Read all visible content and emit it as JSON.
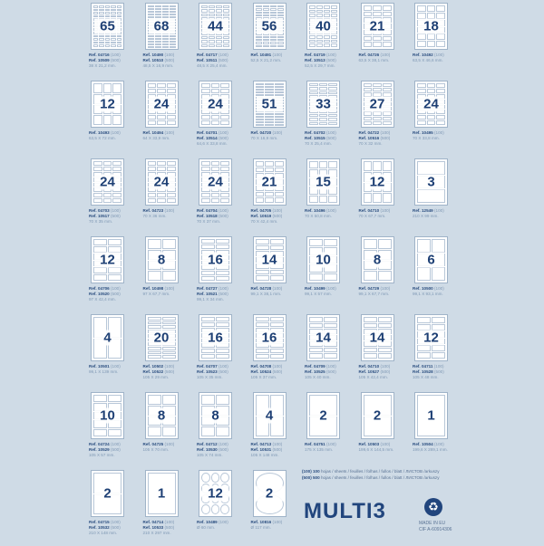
{
  "products": [
    [
      {
        "n": "65",
        "refs": [
          "04716 (100)",
          "10509 (500)"
        ],
        "size": "38 X 21,2 mm.",
        "grid": [
          5,
          13
        ]
      },
      {
        "n": "68",
        "refs": [
          "10490 (100)",
          "10510 (500)"
        ],
        "size": "48,5 X 16,9 mm.",
        "grid": [
          4,
          17
        ]
      },
      {
        "n": "44",
        "refs": [
          "04717 (100)",
          "10511 (500)"
        ],
        "size": "48,5 X 25,4 mm.",
        "grid": [
          4,
          11
        ]
      },
      {
        "n": "56",
        "refs": [
          "10491 (100)"
        ],
        "size": "52,5 X 21,2 mm.",
        "grid": [
          4,
          14
        ]
      },
      {
        "n": "40",
        "refs": [
          "04719 (100)",
          "10513 (500)"
        ],
        "size": "52,5 X 29,7 mm.",
        "grid": [
          4,
          10
        ]
      },
      {
        "n": "21",
        "refs": [
          "04726 (100)"
        ],
        "size": "63,5 X 38,1 mm.",
        "grid": [
          3,
          7
        ]
      },
      {
        "n": "18",
        "refs": [
          "10492 (100)"
        ],
        "size": "63,5 X 46,6 mm.",
        "grid": [
          3,
          6
        ]
      }
    ],
    [
      {
        "n": "12",
        "refs": [
          "10493 (100)"
        ],
        "size": "63,5 X 72 mm.",
        "grid": [
          3,
          4
        ]
      },
      {
        "n": "24",
        "refs": [
          "10494 (100)"
        ],
        "size": "64 X 33,9 mm.",
        "grid": [
          3,
          8
        ]
      },
      {
        "n": "24",
        "refs": [
          "04701 (100)",
          "10514 (500)"
        ],
        "size": "64,6 X 33,8 mm.",
        "grid": [
          3,
          8
        ]
      },
      {
        "n": "51",
        "refs": [
          "04720 (100)"
        ],
        "size": "70 X 16,9 mm.",
        "grid": [
          3,
          17
        ]
      },
      {
        "n": "33",
        "refs": [
          "04702 (100)",
          "10515 (500)"
        ],
        "size": "70 X 25,4 mm.",
        "grid": [
          3,
          11
        ]
      },
      {
        "n": "27",
        "refs": [
          "04722 (100)",
          "10516 (500)"
        ],
        "size": "70 X 32 mm.",
        "grid": [
          3,
          9
        ]
      },
      {
        "n": "24",
        "refs": [
          "10495 (100)"
        ],
        "size": "70 X 33,8 mm.",
        "grid": [
          3,
          8
        ]
      }
    ],
    [
      {
        "n": "24",
        "refs": [
          "04703 (100)",
          "10517 (500)"
        ],
        "size": "70 X 35 mm.",
        "grid": [
          3,
          8
        ]
      },
      {
        "n": "24",
        "refs": [
          "04723 (100)"
        ],
        "size": "70 X 36 mm.",
        "grid": [
          3,
          8
        ]
      },
      {
        "n": "24",
        "refs": [
          "04704 (100)",
          "10518 (500)"
        ],
        "size": "70 X 37 mm.",
        "grid": [
          3,
          8
        ]
      },
      {
        "n": "21",
        "refs": [
          "04705 (100)",
          "10519 (500)"
        ],
        "size": "70 X 42,4 mm.",
        "grid": [
          3,
          7
        ]
      },
      {
        "n": "15",
        "refs": [
          "10496 (100)"
        ],
        "size": "70 X 50,8 mm.",
        "grid": [
          3,
          5
        ]
      },
      {
        "n": "12",
        "refs": [
          "04710 (100)"
        ],
        "size": "70 X 67,7 mm.",
        "grid": [
          3,
          4
        ]
      },
      {
        "n": "3",
        "refs": [
          "12549 (100)"
        ],
        "size": "210 X 99 mm.",
        "grid": [
          1,
          3
        ]
      }
    ],
    [
      {
        "n": "12",
        "refs": [
          "04706 (100)",
          "10520 (500)"
        ],
        "size": "97 X 42,4 mm.",
        "grid": [
          2,
          6
        ]
      },
      {
        "n": "8",
        "refs": [
          "10498 (100)"
        ],
        "size": "97 X 67,7 mm.",
        "grid": [
          2,
          4
        ]
      },
      {
        "n": "16",
        "refs": [
          "04727 (100)",
          "10521 (500)"
        ],
        "size": "99,1 X 34 mm.",
        "grid": [
          2,
          8
        ]
      },
      {
        "n": "14",
        "refs": [
          "04728 (100)"
        ],
        "size": "99,1 X 38,1 mm.",
        "grid": [
          2,
          7
        ]
      },
      {
        "n": "10",
        "refs": [
          "10499 (100)"
        ],
        "size": "99,1 X 57 mm.",
        "grid": [
          2,
          5
        ]
      },
      {
        "n": "8",
        "refs": [
          "04729 (100)"
        ],
        "size": "99,1 X 67,7 mm.",
        "grid": [
          2,
          4
        ]
      },
      {
        "n": "6",
        "refs": [
          "10500 (100)"
        ],
        "size": "99,1 X 93,1 mm.",
        "grid": [
          2,
          3
        ]
      }
    ],
    [
      {
        "n": "4",
        "refs": [
          "10501 (100)"
        ],
        "size": "99,1 X 139 mm.",
        "grid": [
          2,
          2
        ]
      },
      {
        "n": "20",
        "refs": [
          "10502 (100)",
          "10522 (500)"
        ],
        "size": "105 X 29 mm.",
        "grid": [
          2,
          10
        ]
      },
      {
        "n": "16",
        "refs": [
          "04707 (100)",
          "10523 (500)"
        ],
        "size": "105 X 35 mm.",
        "grid": [
          2,
          8
        ]
      },
      {
        "n": "16",
        "refs": [
          "04708 (100)",
          "10524 (500)"
        ],
        "size": "105 X 37 mm.",
        "grid": [
          2,
          8
        ]
      },
      {
        "n": "14",
        "refs": [
          "04709 (100)",
          "10525 (500)"
        ],
        "size": "105 X 40 mm.",
        "grid": [
          2,
          7
        ]
      },
      {
        "n": "14",
        "refs": [
          "04710 (100)",
          "10527 (500)"
        ],
        "size": "105 X 42,4 mm.",
        "grid": [
          2,
          7
        ]
      },
      {
        "n": "12",
        "refs": [
          "04711 (100)",
          "10528 (500)"
        ],
        "size": "105 X 48 mm.",
        "grid": [
          2,
          6
        ]
      }
    ],
    [
      {
        "n": "10",
        "refs": [
          "04724 (100)",
          "10529 (500)"
        ],
        "size": "105 X 57 mm.",
        "grid": [
          2,
          5
        ]
      },
      {
        "n": "8",
        "refs": [
          "04725 (100)"
        ],
        "size": "105 X 70 mm.",
        "grid": [
          2,
          4
        ]
      },
      {
        "n": "8",
        "refs": [
          "04712 (100)",
          "10530 (500)"
        ],
        "size": "105 X 74 mm.",
        "grid": [
          2,
          4
        ]
      },
      {
        "n": "4",
        "refs": [
          "04713 (100)",
          "10531 (500)"
        ],
        "size": "105 X 148 mm.",
        "grid": [
          2,
          2
        ]
      },
      {
        "n": "2",
        "refs": [
          "04751 (100)"
        ],
        "size": "175 X 135 mm.",
        "grid": [
          1,
          2
        ]
      },
      {
        "n": "2",
        "refs": [
          "10503 (100)"
        ],
        "size": "199,6 X 144,5 mm.",
        "grid": [
          1,
          2
        ]
      },
      {
        "n": "1",
        "refs": [
          "10504 (100)"
        ],
        "size": "199,6 X 289,1 mm.",
        "grid": [
          1,
          1
        ]
      }
    ],
    [
      {
        "n": "2",
        "refs": [
          "04715 (100)",
          "10532 (500)"
        ],
        "size": "210 X 148 mm.",
        "grid": [
          1,
          2
        ]
      },
      {
        "n": "1",
        "refs": [
          "04714 (100)",
          "10533 (500)"
        ],
        "size": "210 X 297 mm.",
        "grid": [
          1,
          1
        ]
      },
      {
        "n": "12",
        "refs": [
          "10489 (100)"
        ],
        "size": "Ø 60 mm.",
        "grid": [
          3,
          4
        ],
        "round": true
      },
      {
        "n": "2",
        "refs": [
          "10816 (100)"
        ],
        "size": "Ø 117 mm.",
        "grid": [
          1,
          2
        ],
        "round": true
      }
    ]
  ],
  "ref_prefix": "Ref.",
  "legend": {
    "line1_qty": "(100) 100",
    "line1_text": "hojas / sheets / feuilles / folhas / fullos / blatt / ЛИСТОВ /arkuszy",
    "line2_qty": "(500) 500",
    "line2_text": "hojas / sheets / feuilles / folhas / fullos / blatt / ЛИСТОВ /arkuszy"
  },
  "brand": {
    "logo": "MULTI3",
    "made_in": "MADE IN EU",
    "cif": "CIF A-60914306"
  },
  "colors": {
    "background": "#cfdbe6",
    "brand": "#21457d"
  }
}
